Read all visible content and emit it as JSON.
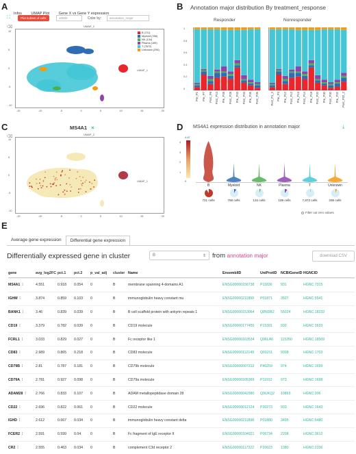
{
  "panel_letters": {
    "a": "A",
    "b": "B",
    "c": "C",
    "d": "D",
    "e": "E"
  },
  "panelA": {
    "tabs": [
      "Infos",
      "UMAP Plot",
      "Gene X vs Gene Y expression"
    ],
    "plot_subset_button": "Plot subset of cells",
    "subset_value": "10000",
    "color_by_label": "Color by:",
    "color_by_value": "annotation_major",
    "x_axis_label": "UMAP_1",
    "y_axis_label": "UMAP_2",
    "x_ticks": [
      "-15",
      "-10",
      "-5",
      "0",
      "5",
      "10",
      "15",
      "20"
    ],
    "y_ticks": [
      "10",
      "5",
      "0",
      "-5",
      "-10"
    ],
    "legend": [
      {
        "label": "B (721)",
        "color": "#e8262b"
      },
      {
        "label": "Myeloid (788)",
        "color": "#2e6db4"
      },
      {
        "label": "NK (134)",
        "color": "#4caf50"
      },
      {
        "label": "Plasma (189)",
        "color": "#8e44ad"
      },
      {
        "label": "T (7872)",
        "color": "#45c6d6"
      },
      {
        "label": "Unknown (296)",
        "color": "#f39c12"
      }
    ]
  },
  "panelB": {
    "title": "Annotation major distribution  By treatment_response",
    "responder_title": "Responder",
    "nonresponder_title": "Nonresponder",
    "y_ticks": [
      "1",
      "0.8",
      "0.6",
      "0.4",
      "0.2",
      "0"
    ],
    "responder_samples": [
      "Pre_P1",
      "Pre_P7",
      "Post_P8",
      "Post_P13",
      "Pre_P28",
      "Post_P28",
      "Pre_P33",
      "Post_P33",
      "Pre_P35",
      "Post_P35"
    ],
    "nonresponder_samples": [
      "Post_P1_2",
      "Pre_P3",
      "Pre_P12",
      "Post_P12",
      "Pre_P13",
      "Post_P14",
      "Pre_P19",
      "Post_P20",
      "Pre_P30",
      "Post_P30",
      "Pre_P32",
      "Post_P32_2"
    ]
  },
  "panelC": {
    "gene": "MS4A1",
    "close_symbol": "×",
    "x_axis_label": "UMAP_1",
    "y_axis_label": "UMAP_2",
    "x_ticks": [
      "-15",
      "-10",
      "-5",
      "0",
      "5",
      "10",
      "15",
      "20"
    ],
    "y_ticks": [
      "10",
      "5",
      "0",
      "-5",
      "-10"
    ]
  },
  "panelD": {
    "title": "MS4A1 expression distribution in annotation major",
    "scale_max": "4.87",
    "scale_min": "0",
    "scale_ticks": [
      "4",
      "3",
      "2",
      "1"
    ],
    "groups": [
      {
        "name": "B",
        "cells": "721 cells",
        "color": "#c0392b",
        "fill": 0.9
      },
      {
        "name": "Myeloid",
        "cells": "788 cells",
        "color": "#2e6db4",
        "fill": 0.08
      },
      {
        "name": "NK",
        "cells": "134 cells",
        "color": "#4caf50",
        "fill": 0.05
      },
      {
        "name": "Plasma",
        "cells": "189 cells",
        "color": "#8e44ad",
        "fill": 0.1
      },
      {
        "name": "T",
        "cells": "7,872 cells",
        "color": "#45c6d6",
        "fill": 0.02
      },
      {
        "name": "Unknown",
        "cells": "296 cells",
        "color": "#f39c12",
        "fill": 0.06
      }
    ],
    "filter_label": "Filter out zero values"
  },
  "panelE": {
    "tabs": [
      "Average gene expression",
      "Differential gene expression"
    ],
    "heading": "Differentially expressed gene in cluster",
    "cluster_value": "B",
    "from_text": "from",
    "annotation_word": "annotation",
    "major_word": "major",
    "download_button": "download CSV",
    "columns": [
      "gene",
      "avg_log2FC",
      "pct.1",
      "pct.2",
      "p_val_adj",
      "cluster",
      "Name",
      "EnsemblID",
      "UniProtID",
      "NCBIGeneID",
      "HGNCID"
    ],
    "rows": [
      [
        "MS4A1",
        "4.551",
        "0.918",
        "0.054",
        "0",
        "B",
        "membrane spanning 4-domains A1",
        "ENSG00000156738",
        "P11836",
        "931",
        "HGNC:7315"
      ],
      [
        "IGHM",
        "3.874",
        "0.859",
        "0.103",
        "0",
        "B",
        "immunoglobulin heavy constant mu",
        "ENSG00000211899",
        "P01871",
        "3507",
        "HGNC:5541"
      ],
      [
        "BANK1",
        "3.46",
        "0.839",
        "0.039",
        "0",
        "B",
        "B cell scaffold protein with ankyrin repeats 1",
        "ENSG00000153064",
        "Q8NDB2",
        "55024",
        "HGNC:18233"
      ],
      [
        "CD19",
        "3.379",
        "0.782",
        "0.039",
        "0",
        "B",
        "CD19 molecule",
        "ENSG00000177455",
        "P15391",
        "930",
        "HGNC:1633"
      ],
      [
        "FCRL1",
        "3.033",
        "0.829",
        "0.027",
        "0",
        "B",
        "Fc receptor like 1",
        "ENSG00000163534",
        "Q96LA6",
        "115350",
        "HGNC:18509"
      ],
      [
        "CD83",
        "2.989",
        "0.865",
        "0.218",
        "0",
        "B",
        "CD83 molecule",
        "ENSG00000112149",
        "Q01151",
        "9308",
        "HGNC:1703"
      ],
      [
        "CD79B",
        "2.81",
        "0.787",
        "0.181",
        "0",
        "B",
        "CD79b molecule",
        "ENSG00000007312",
        "P40259",
        "974",
        "HGNC:1699"
      ],
      [
        "CD79A",
        "2.781",
        "0.927",
        "0.098",
        "0",
        "B",
        "CD79a molecule",
        "ENSG00000105369",
        "P11912",
        "973",
        "HGNC:1698"
      ],
      [
        "ADAM28",
        "2.766",
        "0.833",
        "0.107",
        "0",
        "B",
        "ADAM metallopeptidase domain 28",
        "ENSG00000042980",
        "Q9UKQ2",
        "10863",
        "HGNC:206"
      ],
      [
        "CD22",
        "2.696",
        "0.822",
        "0.061",
        "0",
        "B",
        "CD22 molecule",
        "ENSG00000012124",
        "P20273",
        "933",
        "HGNC:1643"
      ],
      [
        "IGHD",
        "2.612",
        "0.667",
        "0.034",
        "0",
        "B",
        "immunoglobulin heavy constant delta",
        "ENSG00000211898",
        "P01880",
        "3495",
        "HGNC:5480"
      ],
      [
        "FCER2",
        "2.591",
        "0.599",
        "0.04",
        "0",
        "B",
        "Fc fragment of IgE receptor II",
        "ENSG00000104921",
        "P06734",
        "2208",
        "HGNC:3612"
      ],
      [
        "CR2",
        "2.555",
        "0.463",
        "0.034",
        "0",
        "B",
        "complement C3d receptor 2",
        "ENSG00000117322",
        "P20023",
        "1380",
        "HGNC:2336"
      ]
    ]
  }
}
